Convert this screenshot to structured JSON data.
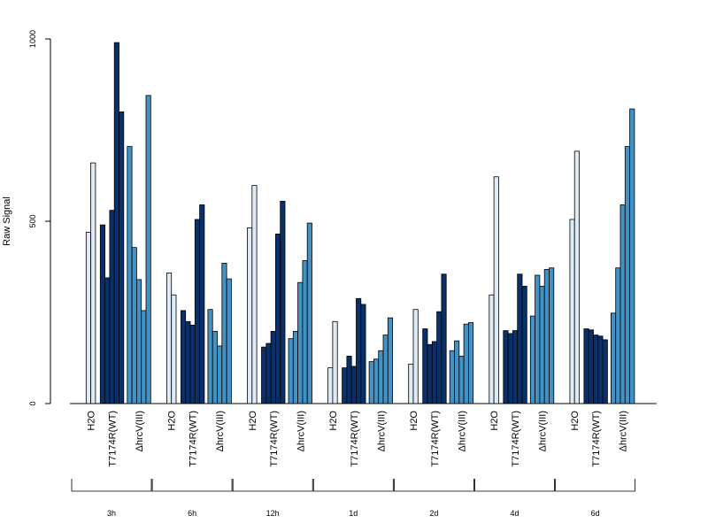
{
  "chart_data": {
    "type": "bar",
    "ylabel": "Raw Signal",
    "ylim": [
      0,
      1000
    ],
    "yticks": [
      0,
      500,
      1000
    ],
    "groups": [
      "3h",
      "6h",
      "12h",
      "1d",
      "2d",
      "4d",
      "6d"
    ],
    "conditions": [
      "H2O",
      "T7174R(WT)",
      "ΔhrcV(III)"
    ],
    "colors": {
      "H2O": "#deebf7",
      "T7174R(WT)": "#08306b",
      "ΔhrcV(III)": "#4292c6"
    },
    "series": [
      {
        "group": "3h",
        "condition": "H2O",
        "values": [
          470,
          660
        ]
      },
      {
        "group": "3h",
        "condition": "T7174R(WT)",
        "values": [
          490,
          345,
          530,
          990,
          800
        ]
      },
      {
        "group": "3h",
        "condition": "ΔhrcV(III)",
        "values": [
          705,
          428,
          340,
          255,
          845
        ]
      },
      {
        "group": "6h",
        "condition": "H2O",
        "values": [
          358,
          298
        ]
      },
      {
        "group": "6h",
        "condition": "T7174R(WT)",
        "values": [
          255,
          225,
          215,
          505,
          545
        ]
      },
      {
        "group": "6h",
        "condition": "ΔhrcV(III)",
        "values": [
          258,
          198,
          158,
          385,
          342
        ]
      },
      {
        "group": "12h",
        "condition": "H2O",
        "values": [
          482,
          598
        ]
      },
      {
        "group": "12h",
        "condition": "T7174R(WT)",
        "values": [
          155,
          165,
          198,
          465,
          555
        ]
      },
      {
        "group": "12h",
        "condition": "ΔhrcV(III)",
        "values": [
          178,
          198,
          332,
          392,
          495
        ]
      },
      {
        "group": "1d",
        "condition": "H2O",
        "values": [
          98,
          225
        ]
      },
      {
        "group": "1d",
        "condition": "T7174R(WT)",
        "values": [
          98,
          130,
          102,
          288,
          272
        ]
      },
      {
        "group": "1d",
        "condition": "ΔhrcV(III)",
        "values": [
          115,
          122,
          145,
          188,
          235
        ]
      },
      {
        "group": "2d",
        "condition": "H2O",
        "values": [
          108,
          258
        ]
      },
      {
        "group": "2d",
        "condition": "T7174R(WT)",
        "values": [
          205,
          162,
          170,
          252,
          355
        ]
      },
      {
        "group": "2d",
        "condition": "ΔhrcV(III)",
        "values": [
          145,
          172,
          130,
          218,
          222
        ]
      },
      {
        "group": "4d",
        "condition": "H2O",
        "values": [
          298,
          622
        ]
      },
      {
        "group": "4d",
        "condition": "T7174R(WT)",
        "values": [
          200,
          192,
          200,
          355,
          322
        ]
      },
      {
        "group": "4d",
        "condition": "ΔhrcV(III)",
        "values": [
          240,
          352,
          322,
          368,
          372
        ]
      },
      {
        "group": "6d",
        "condition": "H2O",
        "values": [
          505,
          692
        ]
      },
      {
        "group": "6d",
        "condition": "T7174R(WT)",
        "values": [
          205,
          202,
          188,
          185,
          175
        ]
      },
      {
        "group": "6d",
        "condition": "ΔhrcV(III)",
        "values": [
          248,
          372,
          545,
          705,
          808
        ]
      }
    ]
  }
}
